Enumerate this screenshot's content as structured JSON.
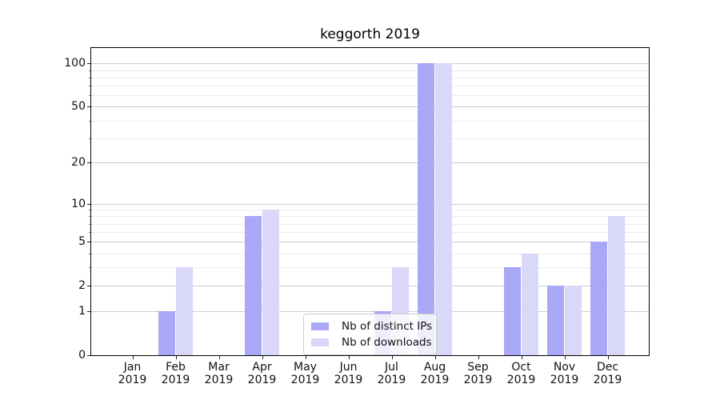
{
  "chart_data": {
    "type": "bar",
    "title": "keggorth 2019",
    "categories": [
      "Jan",
      "Feb",
      "Mar",
      "Apr",
      "May",
      "Jun",
      "Jul",
      "Aug",
      "Sep",
      "Oct",
      "Nov",
      "Dec"
    ],
    "category_year": "2019",
    "series": [
      {
        "name": "Nb of distinct IPs",
        "color": "#a9a8f6",
        "values": [
          0,
          1,
          0,
          8,
          0,
          0,
          1,
          100,
          0,
          3,
          2,
          5
        ]
      },
      {
        "name": "Nb of downloads",
        "color": "#d9d8f9",
        "values": [
          0,
          3,
          0,
          9,
          0,
          0,
          3,
          100,
          0,
          4,
          2,
          8
        ]
      }
    ],
    "yscale": "log1p",
    "yticks": [
      0,
      1,
      2,
      5,
      10,
      20,
      50,
      100
    ],
    "yticks_minor": [
      3,
      4,
      6,
      7,
      8,
      9,
      30,
      40,
      60,
      70,
      80,
      90
    ],
    "ylim": [
      0,
      128
    ],
    "xlabel": "",
    "ylabel": "",
    "grid": true,
    "legend_position": "lower center"
  },
  "colors": {
    "background": "#ffffff",
    "axis_frame": "#000000",
    "grid_major": "#cccccc",
    "grid_minor": "#ebebeb",
    "legend_border": "#cccccc",
    "legend_background": "rgba(255,255,255,0.8)"
  }
}
